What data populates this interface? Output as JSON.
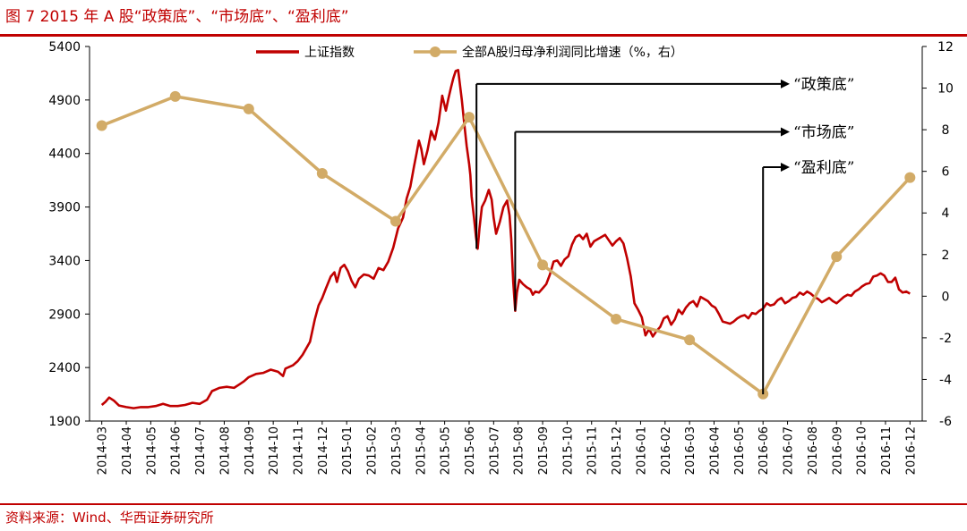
{
  "figure": {
    "title": "图 7 2015 年 A 股“政策底”、“市场底”、“盈利底”",
    "source": "资料来源：Wind、华西证券研究所"
  },
  "colors": {
    "accent": "#c00000",
    "index_line": "#c00000",
    "profit_line": "#d2ab67"
  },
  "chart_data": {
    "type": "line",
    "categories": [
      "2014-03",
      "2014-04",
      "2014-05",
      "2014-06",
      "2014-07",
      "2014-08",
      "2014-09",
      "2014-10",
      "2014-11",
      "2014-12",
      "2015-01",
      "2015-02",
      "2015-03",
      "2015-04",
      "2015-05",
      "2015-06",
      "2015-07",
      "2015-08",
      "2015-09",
      "2015-10",
      "2015-11",
      "2015-12",
      "2016-01",
      "2016-02",
      "2016-03",
      "2016-04",
      "2016-05",
      "2016-06",
      "2016-07",
      "2016-08",
      "2016-09",
      "2016-10",
      "2016-11",
      "2016-12"
    ],
    "y_left": {
      "min": 1900,
      "max": 5400,
      "ticks": [
        "1900",
        "2400",
        "2900",
        "3400",
        "3900",
        "4400",
        "4900",
        "5400"
      ]
    },
    "y_right": {
      "min": -6,
      "max": 12,
      "ticks": [
        "-6",
        "-4",
        "-2",
        "0",
        "2",
        "4",
        "6",
        "8",
        "10",
        "12"
      ]
    },
    "legend": {
      "placement": "top"
    },
    "series": [
      {
        "name": "上证指数",
        "axis": "left",
        "style": "line",
        "points": [
          [
            0.0,
            2050
          ],
          [
            0.15,
            2080
          ],
          [
            0.3,
            2120
          ],
          [
            0.5,
            2090
          ],
          [
            0.7,
            2045
          ],
          [
            1.0,
            2030
          ],
          [
            1.3,
            2020
          ],
          [
            1.6,
            2030
          ],
          [
            1.9,
            2030
          ],
          [
            2.2,
            2040
          ],
          [
            2.5,
            2060
          ],
          [
            2.8,
            2040
          ],
          [
            3.1,
            2040
          ],
          [
            3.4,
            2050
          ],
          [
            3.7,
            2070
          ],
          [
            4.0,
            2060
          ],
          [
            4.3,
            2100
          ],
          [
            4.5,
            2180
          ],
          [
            4.8,
            2210
          ],
          [
            5.1,
            2220
          ],
          [
            5.4,
            2210
          ],
          [
            5.6,
            2240
          ],
          [
            5.8,
            2270
          ],
          [
            6.0,
            2310
          ],
          [
            6.3,
            2340
          ],
          [
            6.6,
            2350
          ],
          [
            6.9,
            2380
          ],
          [
            7.2,
            2360
          ],
          [
            7.4,
            2320
          ],
          [
            7.5,
            2390
          ],
          [
            7.8,
            2420
          ],
          [
            8.0,
            2460
          ],
          [
            8.2,
            2520
          ],
          [
            8.5,
            2640
          ],
          [
            8.7,
            2850
          ],
          [
            8.85,
            2980
          ],
          [
            9.0,
            3050
          ],
          [
            9.15,
            3140
          ],
          [
            9.35,
            3250
          ],
          [
            9.5,
            3290
          ],
          [
            9.6,
            3200
          ],
          [
            9.75,
            3330
          ],
          [
            9.9,
            3360
          ],
          [
            10.05,
            3300
          ],
          [
            10.2,
            3210
          ],
          [
            10.35,
            3150
          ],
          [
            10.5,
            3230
          ],
          [
            10.7,
            3270
          ],
          [
            10.9,
            3260
          ],
          [
            11.1,
            3230
          ],
          [
            11.3,
            3330
          ],
          [
            11.5,
            3310
          ],
          [
            11.7,
            3390
          ],
          [
            11.9,
            3520
          ],
          [
            12.1,
            3700
          ],
          [
            12.3,
            3800
          ],
          [
            12.45,
            3980
          ],
          [
            12.6,
            4090
          ],
          [
            12.75,
            4280
          ],
          [
            12.85,
            4400
          ],
          [
            12.95,
            4520
          ],
          [
            13.05,
            4440
          ],
          [
            13.15,
            4300
          ],
          [
            13.3,
            4430
          ],
          [
            13.45,
            4610
          ],
          [
            13.6,
            4530
          ],
          [
            13.75,
            4690
          ],
          [
            13.9,
            4940
          ],
          [
            14.05,
            4800
          ],
          [
            14.15,
            4910
          ],
          [
            14.25,
            5010
          ],
          [
            14.35,
            5100
          ],
          [
            14.45,
            5170
          ],
          [
            14.55,
            5180
          ],
          [
            14.62,
            5050
          ],
          [
            14.7,
            4900
          ],
          [
            14.8,
            4680
          ],
          [
            14.9,
            4470
          ],
          [
            15.0,
            4300
          ],
          [
            15.05,
            4200
          ],
          [
            15.1,
            4000
          ],
          [
            15.2,
            3800
          ],
          [
            15.28,
            3620
          ],
          [
            15.35,
            3510
          ],
          [
            15.42,
            3700
          ],
          [
            15.52,
            3900
          ],
          [
            15.65,
            3960
          ],
          [
            15.8,
            4060
          ],
          [
            15.92,
            3970
          ],
          [
            16.0,
            3800
          ],
          [
            16.1,
            3650
          ],
          [
            16.25,
            3760
          ],
          [
            16.4,
            3900
          ],
          [
            16.55,
            3960
          ],
          [
            16.65,
            3820
          ],
          [
            16.72,
            3600
          ],
          [
            16.8,
            3200
          ],
          [
            16.88,
            2930
          ],
          [
            16.95,
            3100
          ],
          [
            17.05,
            3220
          ],
          [
            17.2,
            3180
          ],
          [
            17.35,
            3150
          ],
          [
            17.5,
            3130
          ],
          [
            17.6,
            3080
          ],
          [
            17.7,
            3110
          ],
          [
            17.85,
            3100
          ],
          [
            18.0,
            3140
          ],
          [
            18.15,
            3180
          ],
          [
            18.3,
            3270
          ],
          [
            18.45,
            3390
          ],
          [
            18.6,
            3400
          ],
          [
            18.75,
            3350
          ],
          [
            18.9,
            3410
          ],
          [
            19.05,
            3440
          ],
          [
            19.2,
            3550
          ],
          [
            19.35,
            3620
          ],
          [
            19.5,
            3640
          ],
          [
            19.65,
            3600
          ],
          [
            19.8,
            3650
          ],
          [
            19.95,
            3530
          ],
          [
            20.1,
            3580
          ],
          [
            20.25,
            3600
          ],
          [
            20.4,
            3620
          ],
          [
            20.55,
            3640
          ],
          [
            20.7,
            3590
          ],
          [
            20.85,
            3540
          ],
          [
            21.0,
            3580
          ],
          [
            21.15,
            3610
          ],
          [
            21.3,
            3560
          ],
          [
            21.45,
            3420
          ],
          [
            21.6,
            3250
          ],
          [
            21.75,
            3000
          ],
          [
            21.9,
            2940
          ],
          [
            22.05,
            2870
          ],
          [
            22.2,
            2700
          ],
          [
            22.35,
            2760
          ],
          [
            22.5,
            2690
          ],
          [
            22.65,
            2740
          ],
          [
            22.8,
            2780
          ],
          [
            22.95,
            2860
          ],
          [
            23.1,
            2880
          ],
          [
            23.25,
            2800
          ],
          [
            23.4,
            2850
          ],
          [
            23.55,
            2940
          ],
          [
            23.7,
            2900
          ],
          [
            23.85,
            2960
          ],
          [
            24.0,
            3000
          ],
          [
            24.15,
            3020
          ],
          [
            24.3,
            2970
          ],
          [
            24.45,
            3060
          ],
          [
            24.6,
            3040
          ],
          [
            24.75,
            3020
          ],
          [
            24.9,
            2980
          ],
          [
            25.05,
            2960
          ],
          [
            25.2,
            2900
          ],
          [
            25.35,
            2830
          ],
          [
            25.5,
            2820
          ],
          [
            25.65,
            2810
          ],
          [
            25.8,
            2830
          ],
          [
            25.95,
            2860
          ],
          [
            26.1,
            2880
          ],
          [
            26.25,
            2890
          ],
          [
            26.4,
            2860
          ],
          [
            26.55,
            2910
          ],
          [
            26.7,
            2900
          ],
          [
            26.85,
            2930
          ],
          [
            27.0,
            2950
          ],
          [
            27.15,
            3000
          ],
          [
            27.3,
            2980
          ],
          [
            27.45,
            2990
          ],
          [
            27.6,
            3030
          ],
          [
            27.75,
            3050
          ],
          [
            27.9,
            3000
          ],
          [
            28.05,
            3020
          ],
          [
            28.2,
            3050
          ],
          [
            28.35,
            3060
          ],
          [
            28.5,
            3100
          ],
          [
            28.65,
            3080
          ],
          [
            28.8,
            3110
          ],
          [
            28.95,
            3090
          ],
          [
            29.1,
            3060
          ],
          [
            29.25,
            3040
          ],
          [
            29.4,
            3010
          ],
          [
            29.55,
            3030
          ],
          [
            29.7,
            3050
          ],
          [
            29.85,
            3020
          ],
          [
            30.0,
            3000
          ],
          [
            30.15,
            3030
          ],
          [
            30.3,
            3060
          ],
          [
            30.45,
            3080
          ],
          [
            30.6,
            3070
          ],
          [
            30.75,
            3110
          ],
          [
            30.9,
            3130
          ],
          [
            31.05,
            3160
          ],
          [
            31.2,
            3180
          ],
          [
            31.35,
            3190
          ],
          [
            31.5,
            3250
          ],
          [
            31.65,
            3260
          ],
          [
            31.8,
            3280
          ],
          [
            31.95,
            3260
          ],
          [
            32.1,
            3200
          ],
          [
            32.25,
            3200
          ],
          [
            32.4,
            3240
          ],
          [
            32.55,
            3130
          ],
          [
            32.7,
            3100
          ],
          [
            32.85,
            3110
          ],
          [
            33.0,
            3090
          ]
        ]
      },
      {
        "name": "全部A股归母净利润同比增速（%，右）",
        "axis": "right",
        "style": "line-markers",
        "points": [
          [
            0.0,
            8.2
          ],
          [
            3.0,
            9.6
          ],
          [
            6.0,
            9.0
          ],
          [
            9.0,
            5.9
          ],
          [
            12.0,
            3.6
          ],
          [
            15.0,
            8.6
          ],
          [
            18.0,
            1.5
          ],
          [
            21.0,
            -1.1
          ],
          [
            24.0,
            -2.1
          ],
          [
            27.0,
            -4.7
          ],
          [
            30.0,
            1.9
          ],
          [
            33.0,
            5.7
          ]
        ]
      }
    ],
    "annotations": [
      {
        "label": "“政策底”",
        "x_index": 15.3,
        "bottom_value": 3510,
        "line_right_value": 10.2
      },
      {
        "label": "“市场底”",
        "x_index": 16.88,
        "bottom_value": 2930,
        "line_right_value": 7.9
      },
      {
        "label": "“盈利底”",
        "x_index": 27.0,
        "bottom_value": 2150,
        "line_right_value": 6.2
      }
    ]
  }
}
